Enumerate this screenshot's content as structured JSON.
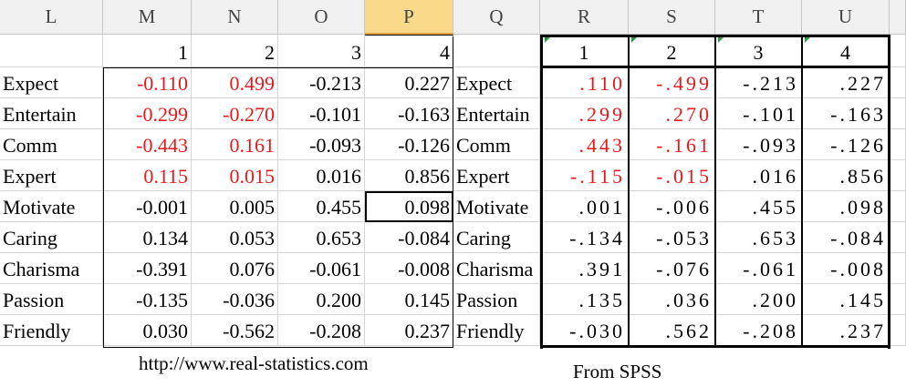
{
  "columns": [
    "L",
    "M",
    "N",
    "O",
    "P",
    "Q",
    "R",
    "S",
    "T",
    "U"
  ],
  "left_table": {
    "headers": [
      "1",
      "2",
      "3",
      "4"
    ],
    "rows": [
      {
        "label": "Expect",
        "values": [
          "-0.110",
          "0.499",
          "-0.213",
          "0.227"
        ],
        "colors": [
          "#e8191c",
          "#e8191c",
          "#000000",
          "#000000"
        ]
      },
      {
        "label": "Entertain",
        "values": [
          "-0.299",
          "-0.270",
          "-0.101",
          "-0.163"
        ],
        "colors": [
          "#e8191c",
          "#e8191c",
          "#000000",
          "#000000"
        ]
      },
      {
        "label": "Comm",
        "values": [
          "-0.443",
          "0.161",
          "-0.093",
          "-0.126"
        ],
        "colors": [
          "#e8191c",
          "#e8191c",
          "#000000",
          "#000000"
        ]
      },
      {
        "label": "Expert",
        "values": [
          "0.115",
          "0.015",
          "0.016",
          "0.856"
        ],
        "colors": [
          "#e8191c",
          "#e8191c",
          "#000000",
          "#000000"
        ]
      },
      {
        "label": "Motivate",
        "values": [
          "-0.001",
          "0.005",
          "0.455",
          "0.098"
        ],
        "colors": [
          "#000000",
          "#000000",
          "#000000",
          "#000000"
        ]
      },
      {
        "label": "Caring",
        "values": [
          "0.134",
          "0.053",
          "0.653",
          "-0.084"
        ],
        "colors": [
          "#000000",
          "#000000",
          "#000000",
          "#000000"
        ]
      },
      {
        "label": "Charisma",
        "values": [
          "-0.391",
          "0.076",
          "-0.061",
          "-0.008"
        ],
        "colors": [
          "#000000",
          "#000000",
          "#000000",
          "#000000"
        ]
      },
      {
        "label": "Passion",
        "values": [
          "-0.135",
          "-0.036",
          "0.200",
          "0.145"
        ],
        "colors": [
          "#000000",
          "#000000",
          "#000000",
          "#000000"
        ]
      },
      {
        "label": "Friendly",
        "values": [
          "0.030",
          "-0.562",
          "-0.208",
          "0.237"
        ],
        "colors": [
          "#000000",
          "#000000",
          "#000000",
          "#000000"
        ]
      }
    ]
  },
  "right_table": {
    "headers": [
      "1",
      "2",
      "3",
      "4"
    ],
    "rows": [
      {
        "label": "Expect",
        "values": [
          ".110",
          "-.499",
          "-.213",
          ".227"
        ],
        "colors": [
          "#e8191c",
          "#e8191c",
          "#000000",
          "#000000"
        ]
      },
      {
        "label": "Entertain",
        "values": [
          ".299",
          ".270",
          "-.101",
          "-.163"
        ],
        "colors": [
          "#e8191c",
          "#e8191c",
          "#000000",
          "#000000"
        ]
      },
      {
        "label": "Comm",
        "values": [
          ".443",
          "-.161",
          "-.093",
          "-.126"
        ],
        "colors": [
          "#e8191c",
          "#e8191c",
          "#000000",
          "#000000"
        ]
      },
      {
        "label": "Expert",
        "values": [
          "-.115",
          "-.015",
          ".016",
          ".856"
        ],
        "colors": [
          "#e8191c",
          "#e8191c",
          "#000000",
          "#000000"
        ]
      },
      {
        "label": "Motivate",
        "values": [
          ".001",
          "-.006",
          ".455",
          ".098"
        ],
        "colors": [
          "#000000",
          "#000000",
          "#000000",
          "#000000"
        ]
      },
      {
        "label": "Caring",
        "values": [
          "-.134",
          "-.053",
          ".653",
          "-.084"
        ],
        "colors": [
          "#000000",
          "#000000",
          "#000000",
          "#000000"
        ]
      },
      {
        "label": "Charisma",
        "values": [
          ".391",
          "-.076",
          "-.061",
          "-.008"
        ],
        "colors": [
          "#000000",
          "#000000",
          "#000000",
          "#000000"
        ]
      },
      {
        "label": "Passion",
        "values": [
          ".135",
          ".036",
          ".200",
          ".145"
        ],
        "colors": [
          "#000000",
          "#000000",
          "#000000",
          "#000000"
        ]
      },
      {
        "label": "Friendly",
        "values": [
          "-.030",
          ".562",
          "-.208",
          ".237"
        ],
        "colors": [
          "#000000",
          "#000000",
          "#000000",
          "#000000"
        ]
      }
    ]
  },
  "notes": {
    "url": "http://www.real-statistics.com",
    "source": "From SPSS"
  }
}
